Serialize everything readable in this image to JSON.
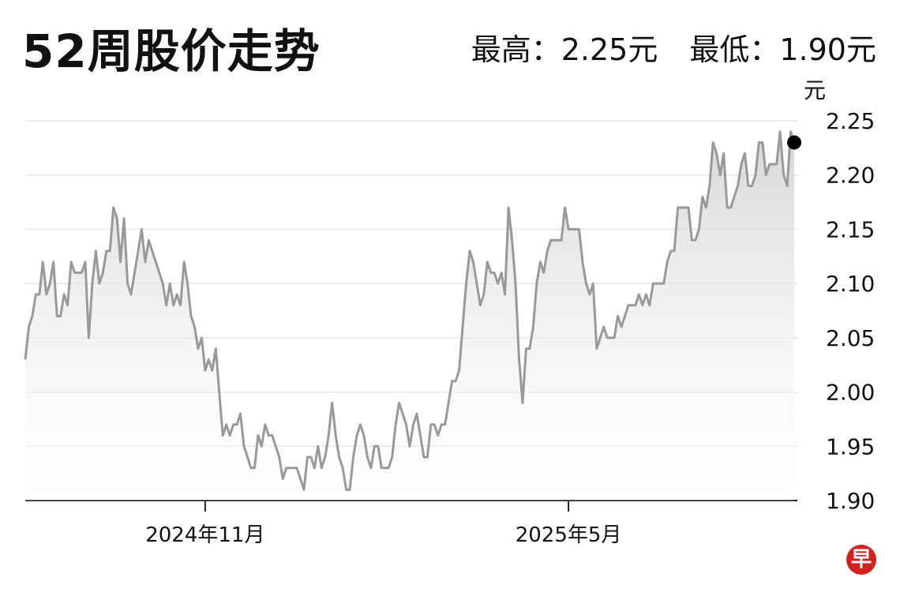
{
  "title": "52周股价走势",
  "stats": {
    "high": "最高：2.25元",
    "low": "最低：1.90元"
  },
  "logo_text": "早",
  "chart_data": {
    "type": "line",
    "unit": "元",
    "ylim": [
      1.9,
      2.25
    ],
    "y_ticks": [
      "2.25",
      "2.20",
      "2.15",
      "2.10",
      "2.05",
      "2.00",
      "1.95",
      "1.90"
    ],
    "x_ticks": [
      {
        "label": "2024年11月",
        "index": 51
      },
      {
        "label": "2025年5月",
        "index": 154
      }
    ],
    "grid": true,
    "area_fill": true,
    "last_point_marker": true,
    "colors": {
      "line": "#999999",
      "marker": "#000000"
    },
    "values": [
      2.03,
      2.06,
      2.07,
      2.09,
      2.09,
      2.12,
      2.09,
      2.1,
      2.12,
      2.07,
      2.07,
      2.09,
      2.08,
      2.12,
      2.11,
      2.11,
      2.11,
      2.12,
      2.05,
      2.1,
      2.13,
      2.1,
      2.11,
      2.13,
      2.13,
      2.17,
      2.16,
      2.12,
      2.16,
      2.1,
      2.09,
      2.11,
      2.13,
      2.15,
      2.12,
      2.14,
      2.13,
      2.12,
      2.11,
      2.1,
      2.08,
      2.1,
      2.08,
      2.09,
      2.08,
      2.12,
      2.1,
      2.07,
      2.06,
      2.04,
      2.05,
      2.02,
      2.03,
      2.02,
      2.04,
      2.0,
      1.96,
      1.97,
      1.96,
      1.97,
      1.97,
      1.98,
      1.95,
      1.94,
      1.93,
      1.93,
      1.96,
      1.95,
      1.97,
      1.96,
      1.96,
      1.95,
      1.94,
      1.92,
      1.93,
      1.93,
      1.93,
      1.93,
      1.92,
      1.91,
      1.94,
      1.94,
      1.93,
      1.95,
      1.93,
      1.94,
      1.96,
      1.99,
      1.96,
      1.94,
      1.93,
      1.91,
      1.91,
      1.94,
      1.96,
      1.97,
      1.96,
      1.94,
      1.93,
      1.95,
      1.95,
      1.93,
      1.93,
      1.93,
      1.94,
      1.97,
      1.99,
      1.98,
      1.97,
      1.95,
      1.97,
      1.98,
      1.96,
      1.94,
      1.94,
      1.97,
      1.97,
      1.96,
      1.97,
      1.97,
      1.99,
      2.01,
      2.01,
      2.02,
      2.06,
      2.1,
      2.13,
      2.12,
      2.1,
      2.08,
      2.09,
      2.12,
      2.11,
      2.11,
      2.1,
      2.11,
      2.09,
      2.17,
      2.14,
      2.1,
      2.03,
      1.99,
      2.04,
      2.04,
      2.06,
      2.1,
      2.12,
      2.11,
      2.13,
      2.14,
      2.14,
      2.14,
      2.14,
      2.17,
      2.15,
      2.15,
      2.15,
      2.15,
      2.12,
      2.1,
      2.09,
      2.1,
      2.04,
      2.05,
      2.06,
      2.05,
      2.05,
      2.05,
      2.07,
      2.06,
      2.07,
      2.08,
      2.08,
      2.08,
      2.09,
      2.08,
      2.09,
      2.08,
      2.1,
      2.1,
      2.1,
      2.1,
      2.12,
      2.13,
      2.13,
      2.17,
      2.17,
      2.17,
      2.17,
      2.14,
      2.14,
      2.15,
      2.18,
      2.17,
      2.19,
      2.23,
      2.22,
      2.2,
      2.22,
      2.17,
      2.17,
      2.18,
      2.19,
      2.21,
      2.22,
      2.19,
      2.19,
      2.2,
      2.23,
      2.23,
      2.2,
      2.21,
      2.21,
      2.21,
      2.24,
      2.2,
      2.19,
      2.24,
      2.23
    ]
  }
}
